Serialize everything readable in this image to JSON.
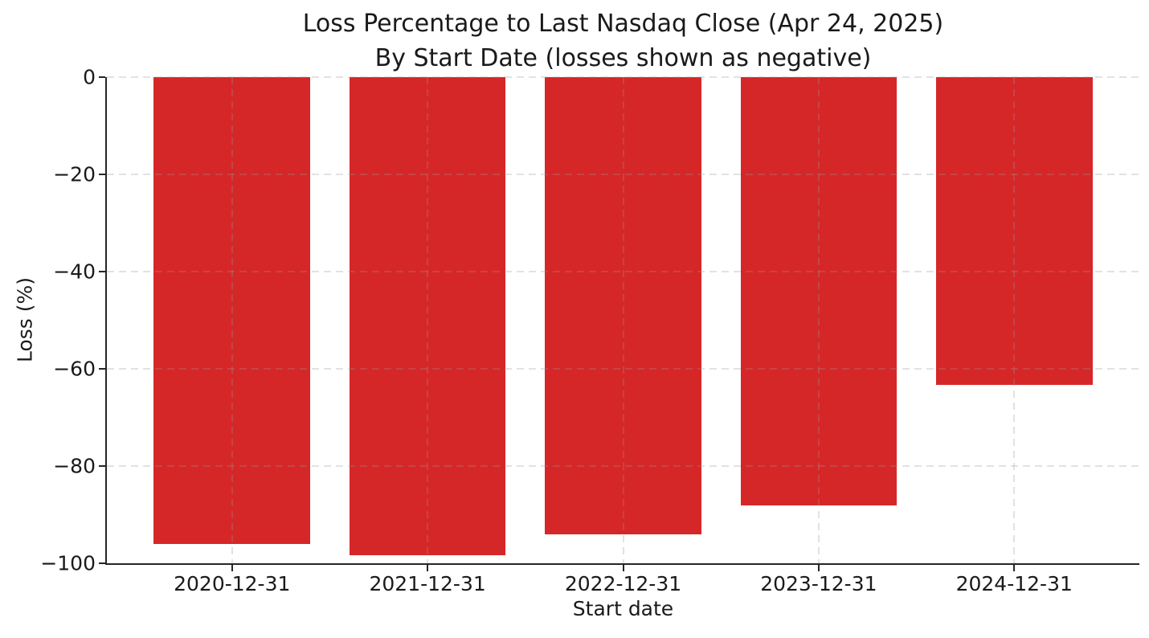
{
  "figure": {
    "background": "#ffffff"
  },
  "chart_data": {
    "type": "bar",
    "title": "Loss Percentage to Last Nasdaq Close (Apr 24, 2025)",
    "subtitle": "By Start Date (losses shown as negative)",
    "categories": [
      "2020-12-31",
      "2021-12-31",
      "2022-12-31",
      "2023-12-31",
      "2024-12-31"
    ],
    "values": [
      -96.0,
      -98.3,
      -94.0,
      -88.1,
      -63.3
    ],
    "xlabel": "Start date",
    "ylabel": "Loss (%)",
    "ylim": [
      -100,
      0
    ],
    "yticks": [
      0,
      -20,
      -40,
      -60,
      -80,
      -100
    ],
    "ytick_labels": [
      "0",
      "−20",
      "−40",
      "−60",
      "−80",
      "−100"
    ],
    "bar_color": "#d62728",
    "bar_width_fraction": 0.8,
    "grid": true,
    "grid_style": "dashed",
    "grid_color": "#b0b0b0",
    "spine_color": "#262626",
    "text_color": "#1a1a1a",
    "legend": null
  }
}
